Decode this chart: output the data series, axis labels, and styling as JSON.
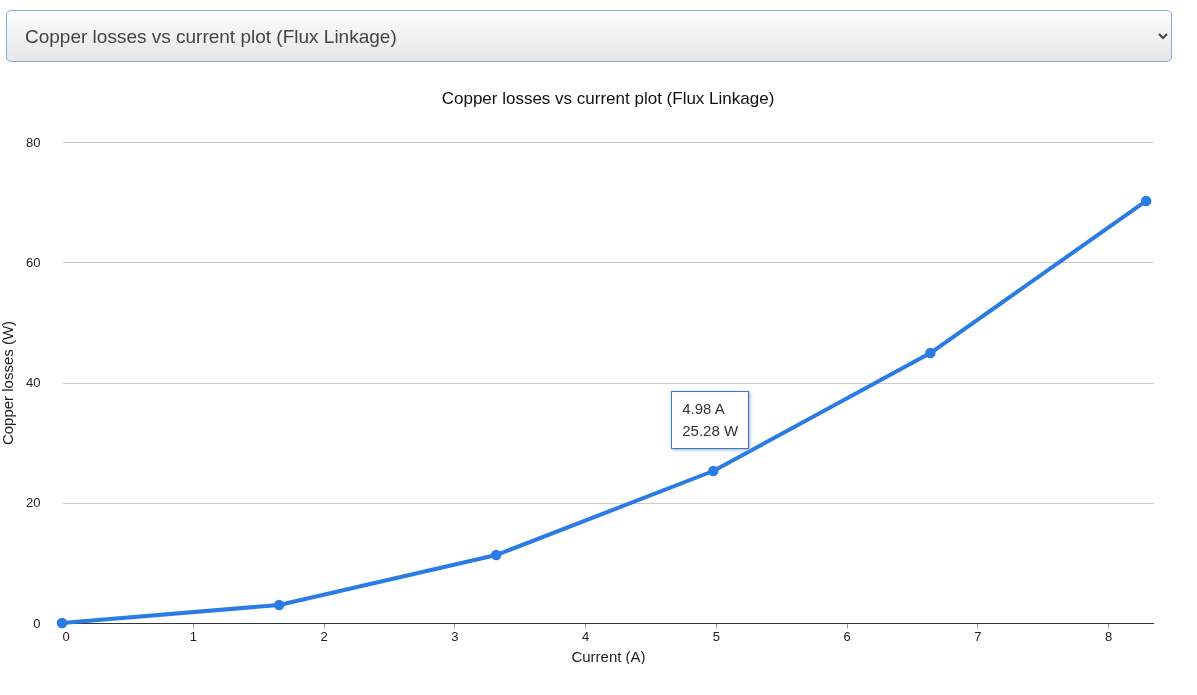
{
  "chart_data": {
    "type": "line",
    "title": "Copper losses vs current plot (Flux Linkage)",
    "xlabel": "Current (A)",
    "ylabel": "Copper losses (W)",
    "x": [
      0,
      1.66,
      3.32,
      4.98,
      6.64,
      8.29
    ],
    "series": [
      {
        "color": "#2a7be4",
        "values": [
          0,
          3.0,
          11.3,
          25.28,
          44.9,
          70.2
        ]
      }
    ],
    "xlim": [
      0,
      8.35
    ],
    "xticks": [
      0,
      1,
      2,
      3,
      4,
      5,
      6,
      7,
      8
    ],
    "ylim": [
      0,
      80
    ],
    "yticks": [
      0,
      20,
      40,
      60,
      80
    ],
    "grid": "y",
    "marker": "circle",
    "line_style": "solid",
    "annotations": [
      {
        "text": "4.98 A\n25.28 W",
        "x": 4.98,
        "y": 25.28
      }
    ]
  }
}
